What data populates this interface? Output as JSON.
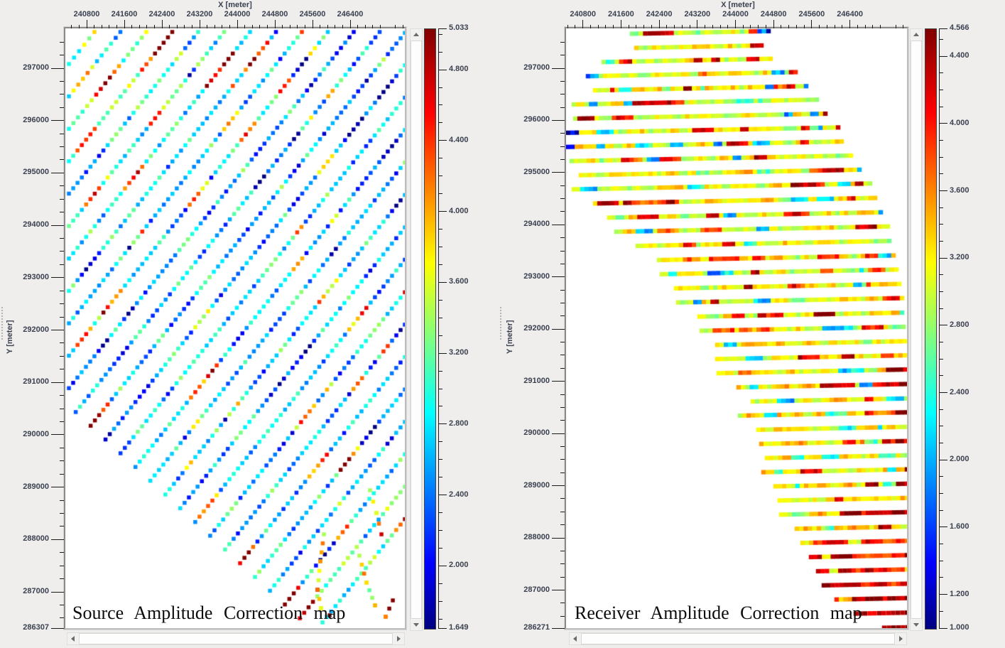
{
  "chart_data": [
    {
      "type": "scatter",
      "caption": "Source Amplitude Correction map",
      "x_axis": {
        "title": "X [meter]",
        "tick_min": 240800,
        "tick_step": 800,
        "tick_count": 8,
        "minor_step": 160
      },
      "y_axis": {
        "title": "Y [meter]",
        "tick_max": 297000,
        "tick_step": 1000,
        "tick_count": 11,
        "minor_step": 250,
        "edge_label": "286307",
        "edge_value": 286307
      },
      "colorbar": {
        "max": 5.033,
        "min": 1.649,
        "max_label": "5.033",
        "min_label": "1.649",
        "major_labels": [
          "4.800",
          "4.400",
          "4.000",
          "3.600",
          "3.200",
          "2.800",
          "2.400",
          "2.000"
        ],
        "minor_step": 0.1,
        "gradient": [
          "#000080",
          "#0000ff",
          "#00ffff",
          "#ffff00",
          "#ff0000",
          "#800000"
        ]
      },
      "noise": {
        "amp": 0.85,
        "spike_prob": 0.045,
        "spike_dv": 1.5,
        "cold_prob": 0.05,
        "cold_dv": -0.75,
        "spacing_px": 9.5,
        "marker_w": 5.5,
        "marker_h": 5.5
      },
      "lines": [
        [
          240423,
          297081,
          240966,
          297692,
          3.1,
          [
            [
              0.55,
              1,
              1.5
            ]
          ]
        ],
        [
          240423,
          296463,
          241517,
          297692,
          2.9
        ],
        [
          240423,
          295843,
          242068,
          297692,
          3.2,
          [
            [
              0.45,
              0.7,
              1.7
            ]
          ]
        ],
        [
          240423,
          295224,
          242619,
          297692,
          3.0,
          [
            [
              0.8,
              1,
              1.8
            ]
          ]
        ],
        [
          240423,
          294605,
          243170,
          297692,
          2.8
        ],
        [
          240423,
          293986,
          243721,
          297692,
          3.0
        ],
        [
          240423,
          293366,
          244272,
          297692,
          2.9,
          [
            [
              0.74,
              0.92,
              1.9
            ]
          ]
        ],
        [
          240423,
          292747,
          244823,
          297692,
          2.8,
          [
            [
              0.78,
              0.9,
              1.4
            ]
          ]
        ],
        [
          240423,
          292129,
          245374,
          297692,
          2.7
        ],
        [
          240423,
          291510,
          245925,
          297692,
          2.8
        ],
        [
          240423,
          290890,
          246476,
          297692,
          2.7
        ],
        [
          240568,
          290434,
          247027,
          297692,
          2.6
        ],
        [
          240885,
          290172,
          247563,
          297674,
          2.7,
          [
            [
              0,
              0.06,
              1.6
            ]
          ]
        ],
        [
          241201,
          289910,
          247563,
          297056,
          2.6
        ],
        [
          241520,
          289647,
          247563,
          296437,
          2.75
        ],
        [
          241837,
          289385,
          247563,
          295818,
          2.6
        ],
        [
          242154,
          289122,
          247563,
          295198,
          2.7
        ],
        [
          242473,
          288859,
          247563,
          294579,
          2.65
        ],
        [
          242790,
          288597,
          247563,
          293960,
          2.7
        ],
        [
          243108,
          288334,
          247563,
          293342,
          2.6
        ],
        [
          243425,
          288072,
          247563,
          292721,
          2.75
        ],
        [
          243742,
          287809,
          247563,
          292103,
          2.7
        ],
        [
          244061,
          287547,
          247563,
          291484,
          2.9,
          [
            [
              0,
              0.1,
              1.5
            ]
          ]
        ],
        [
          244378,
          287284,
          247563,
          290865,
          2.8
        ],
        [
          244696,
          287021,
          247563,
          290245,
          3.0
        ],
        [
          245013,
          286759,
          247563,
          289627,
          3.0,
          [
            [
              0,
              0.12,
              1.6
            ]
          ]
        ],
        [
          245330,
          286496,
          247563,
          289008,
          3.1,
          [
            [
              0,
              0.15,
              1.4
            ]
          ]
        ],
        [
          245812,
          286417,
          247563,
          288389,
          3.2,
          [
            [
              0.85,
              1,
              1.3
            ]
          ]
        ]
      ],
      "extra_paths": [
        {
          "points": [
            [
              245843,
              288099
            ],
            [
              245767,
              287583
            ],
            [
              245707,
              287040
            ],
            [
              245783,
              286688
            ],
            [
              245963,
              286552
            ]
          ],
          "base": 3.9
        },
        {
          "points": [
            [
              246597,
              287692
            ],
            [
              246748,
              287176
            ],
            [
              246929,
              286742
            ],
            [
              247156,
              286525
            ],
            [
              247307,
              286837
            ]
          ],
          "base": 3.7
        },
        {
          "points": [
            [
              246823,
              288940
            ],
            [
              246959,
              288506
            ],
            [
              247065,
              288099
            ]
          ],
          "base": 4.0
        }
      ]
    },
    {
      "type": "scatter",
      "caption": "Receiver Amplitude Correction map",
      "x_axis": {
        "title": "X [meter]",
        "tick_min": 240800,
        "tick_step": 800,
        "tick_count": 8,
        "minor_step": 160
      },
      "y_axis": {
        "title": "Y [meter]",
        "tick_max": 297000,
        "tick_step": 1000,
        "tick_count": 11,
        "minor_step": 250,
        "edge_label": "286271",
        "edge_value": 286271
      },
      "colorbar": {
        "max": 4.566,
        "min": 1.0,
        "max_label": "4.566",
        "min_label": "1.000",
        "major_labels": [
          "4.400",
          "4.000",
          "3.600",
          "3.200",
          "2.800",
          "2.400",
          "2.000",
          "1.600",
          "1.200"
        ],
        "minor_step": 0.1,
        "gradient": [
          "#000080",
          "#0000ff",
          "#00ffff",
          "#ffff00",
          "#ff0000",
          "#800000"
        ]
      },
      "noise": {
        "amp": 0.5,
        "spike_prob": 0.06,
        "spike_dv": 0.95,
        "cold_prob": 0.05,
        "cold_dv": -0.9,
        "spacing_px": 6,
        "marker_w": 6.5,
        "marker_h": 6.2
      },
      "lines": [
        [
          241832,
          297660,
          244693,
          297711,
          3.1,
          [
            [
              0.93,
              1,
              -1.9
            ]
          ]
        ],
        [
          241922,
          297389,
          244544,
          297436,
          3.2
        ],
        [
          241237,
          297118,
          244737,
          297181,
          3.15
        ],
        [
          240909,
          296847,
          245259,
          296925,
          3.1,
          [
            [
              0,
              0.05,
              -1.5
            ]
          ]
        ],
        [
          241058,
          296576,
          245482,
          296656,
          3.25
        ],
        [
          240611,
          296305,
          245706,
          296397,
          3.2,
          [
            [
              0.25,
              0.45,
              0.85
            ]
          ]
        ],
        [
          240641,
          296034,
          245885,
          296128,
          3.1
        ],
        [
          240492,
          295763,
          246153,
          295865,
          3.15,
          [
            [
              0,
              0.04,
              -1.9
            ]
          ]
        ],
        [
          240492,
          295492,
          246227,
          295595,
          3.2,
          [
            [
              0,
              0.03,
              -1.8
            ]
          ]
        ],
        [
          240566,
          295221,
          246421,
          295326,
          3.1
        ],
        [
          240760,
          294950,
          246600,
          295055,
          3.2
        ],
        [
          240611,
          294679,
          246823,
          294791,
          3.15
        ],
        [
          241058,
          294408,
          246928,
          294514,
          3.2,
          [
            [
              0.1,
              0.3,
              0.9
            ]
          ]
        ],
        [
          241356,
          294137,
          247047,
          294239,
          3.1
        ],
        [
          241505,
          293866,
          247196,
          293968,
          3.2
        ],
        [
          241952,
          293595,
          247226,
          293690,
          3.15
        ],
        [
          242399,
          293324,
          247315,
          293412,
          3.2
        ],
        [
          242458,
          293053,
          247375,
          293142,
          3.1
        ],
        [
          242756,
          292782,
          247434,
          292866,
          3.2
        ],
        [
          242801,
          292511,
          247494,
          292595,
          3.15
        ],
        [
          243248,
          292240,
          247494,
          292316,
          3.2
        ],
        [
          243293,
          291969,
          247524,
          292045,
          3.1
        ],
        [
          243620,
          291698,
          247554,
          291769,
          3.2
        ],
        [
          243620,
          291427,
          247554,
          291498,
          3.15
        ],
        [
          243650,
          291156,
          247569,
          291227,
          3.2,
          [
            [
              0.85,
              1,
              0.9
            ]
          ]
        ],
        [
          244067,
          290885,
          247569,
          290948,
          3.25,
          [
            [
              0.8,
              1,
              0.85
            ]
          ]
        ],
        [
          244365,
          290614,
          247584,
          290672,
          3.2
        ],
        [
          244097,
          290343,
          247584,
          290406,
          3.3,
          [
            [
              0.75,
              1,
              0.8
            ]
          ]
        ],
        [
          244484,
          290072,
          247584,
          290128,
          3.25
        ],
        [
          244544,
          289801,
          247584,
          289856,
          3.3,
          [
            [
              0.8,
              1,
              0.9
            ]
          ]
        ],
        [
          244663,
          289530,
          247599,
          289583,
          3.25
        ],
        [
          244589,
          289259,
          247599,
          289313,
          3.3
        ],
        [
          244842,
          288988,
          247599,
          289038,
          3.35,
          [
            [
              0.7,
              1,
              0.8
            ]
          ]
        ],
        [
          244931,
          288717,
          247599,
          288765,
          3.3
        ],
        [
          244961,
          288446,
          247599,
          288493,
          3.4,
          [
            [
              0.6,
              1,
              0.75
            ]
          ]
        ],
        [
          245289,
          288175,
          247599,
          288217,
          3.45
        ],
        [
          245408,
          287904,
          247599,
          287943,
          4.0
        ],
        [
          245587,
          287633,
          247599,
          287669,
          4.1
        ],
        [
          245736,
          287362,
          247599,
          287396,
          4.15
        ],
        [
          245855,
          287091,
          247599,
          287122,
          4.2
        ],
        [
          246123,
          286820,
          247599,
          286847,
          4.25
        ],
        [
          246525,
          286549,
          247599,
          286568,
          4.3
        ],
        [
          247121,
          286278,
          247614,
          286287,
          4.25
        ]
      ],
      "extra_paths": []
    }
  ]
}
